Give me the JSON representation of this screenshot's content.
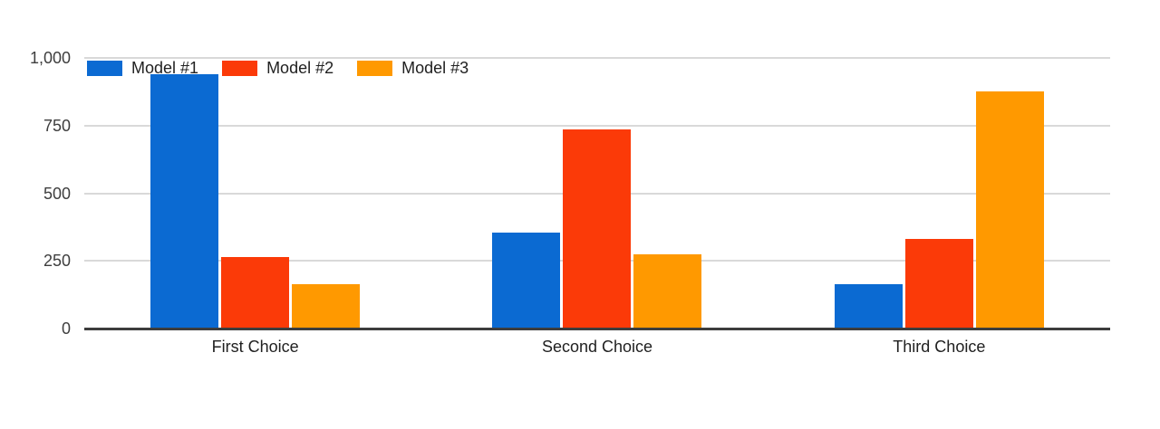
{
  "chart_data": {
    "type": "bar",
    "title": "",
    "xlabel": "",
    "ylabel": "",
    "categories": [
      "First Choice",
      "Second Choice",
      "Third Choice"
    ],
    "series": [
      {
        "name": "Model #1",
        "color": "#0b6ad2",
        "values": [
          940,
          355,
          165
        ]
      },
      {
        "name": "Model #2",
        "color": "#fb3a08",
        "values": [
          265,
          735,
          330
        ]
      },
      {
        "name": "Model #3",
        "color": "#ff9900",
        "values": [
          165,
          275,
          875
        ]
      }
    ],
    "y_axis": {
      "min": 0,
      "max": 1000,
      "ticks": [
        "1,000",
        "750",
        "500",
        "250",
        "0"
      ],
      "tick_values": [
        1000,
        750,
        500,
        250,
        0
      ]
    },
    "legend_position": "top-left",
    "grid": true
  },
  "colors": {
    "gridline": "#d9d9d9",
    "axis": "#3d3d3d",
    "tick_text": "#3e3e3e",
    "label_text": "#212121",
    "background": "#ffffff"
  }
}
